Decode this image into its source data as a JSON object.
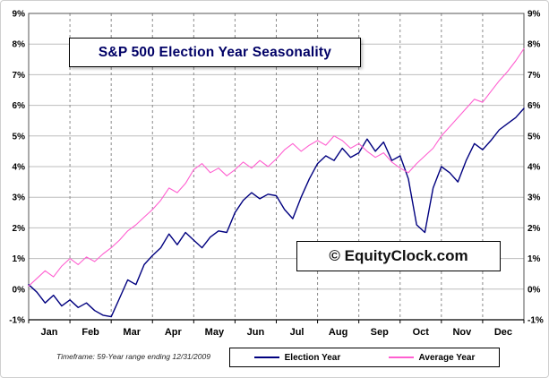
{
  "chart_data": {
    "type": "line",
    "title": "S&P 500 Election Year Seasonality",
    "watermark": "© EquityClock.com",
    "footnote": "Timeframe: 59-Year range ending 12/31/2009",
    "x_tick_labels": [
      "Jan",
      "Feb",
      "Mar",
      "Apr",
      "May",
      "Jun",
      "Jul",
      "Aug",
      "Sep",
      "Oct",
      "Nov",
      "Dec"
    ],
    "y_tick_labels": [
      "-1%",
      "0%",
      "1%",
      "2%",
      "3%",
      "4%",
      "5%",
      "6%",
      "7%",
      "8%",
      "9%"
    ],
    "ylim": [
      -1,
      9
    ],
    "xlim_months": [
      0,
      12
    ],
    "grid": {
      "horizontal": "solid",
      "vertical": "dashed"
    },
    "legend_position": "bottom",
    "series": [
      {
        "name": "Election Year",
        "color": "#00007f",
        "width": 1.4,
        "x_step_months": 0.2,
        "values": [
          0.15,
          -0.1,
          -0.45,
          -0.2,
          -0.55,
          -0.35,
          -0.6,
          -0.45,
          -0.7,
          -0.85,
          -0.9,
          -0.3,
          0.3,
          0.15,
          0.8,
          1.1,
          1.35,
          1.8,
          1.45,
          1.85,
          1.6,
          1.35,
          1.7,
          1.9,
          1.85,
          2.5,
          2.9,
          3.15,
          2.95,
          3.1,
          3.05,
          2.6,
          2.3,
          3.0,
          3.6,
          4.1,
          4.35,
          4.2,
          4.6,
          4.3,
          4.45,
          4.9,
          4.5,
          4.8,
          4.2,
          4.35,
          3.6,
          2.1,
          1.85,
          3.3,
          4.0,
          3.8,
          3.5,
          4.2,
          4.75,
          4.55,
          4.85,
          5.2,
          5.4,
          5.6,
          5.9
        ]
      },
      {
        "name": "Average Year",
        "color": "#ff5fd0",
        "width": 1.1,
        "x_step_months": 0.2,
        "values": [
          0.1,
          0.35,
          0.6,
          0.4,
          0.75,
          1.0,
          0.8,
          1.05,
          0.9,
          1.15,
          1.35,
          1.6,
          1.9,
          2.1,
          2.35,
          2.6,
          2.9,
          3.3,
          3.15,
          3.45,
          3.9,
          4.1,
          3.8,
          3.95,
          3.7,
          3.9,
          4.15,
          3.95,
          4.2,
          4.0,
          4.25,
          4.55,
          4.75,
          4.5,
          4.7,
          4.85,
          4.7,
          5.0,
          4.85,
          4.6,
          4.75,
          4.5,
          4.3,
          4.45,
          4.15,
          3.95,
          3.8,
          4.1,
          4.35,
          4.6,
          5.0,
          5.3,
          5.6,
          5.9,
          6.2,
          6.1,
          6.45,
          6.8,
          7.1,
          7.45,
          7.85
        ]
      }
    ]
  }
}
